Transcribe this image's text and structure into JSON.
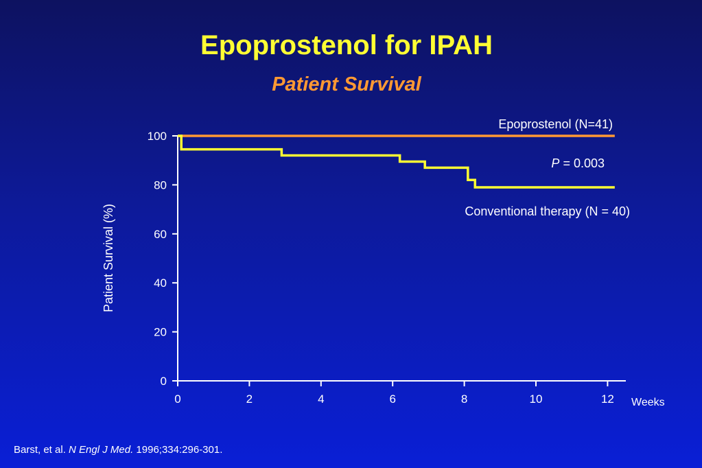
{
  "title": "Epoprostenol for IPAH",
  "subtitle": "Patient Survival",
  "citation": {
    "authors": "Barst, et al. ",
    "journal": "N Engl J Med.",
    "details": " 1996;334:296-301."
  },
  "colors": {
    "title": "#ffff33",
    "subtitle": "#ff9933",
    "epoprostenol": "#ff9933",
    "conventional": "#ffff33",
    "axis": "#ffffff"
  },
  "chart_data": {
    "type": "line",
    "title": "Patient Survival",
    "xlabel": "Weeks",
    "ylabel": "Patient Survival (%)",
    "xlim": [
      0,
      12.5
    ],
    "ylim": [
      0,
      100
    ],
    "xticks": [
      0,
      2,
      4,
      6,
      8,
      10,
      12
    ],
    "yticks": [
      0,
      20,
      40,
      60,
      80,
      100
    ],
    "grid": false,
    "step": true,
    "series": [
      {
        "name": "Epoprostenol (N=41)",
        "color": "#ff9933",
        "x": [
          0,
          12.2
        ],
        "y": [
          100,
          100
        ]
      },
      {
        "name": "Conventional therapy (N = 40)",
        "color": "#ffff33",
        "x": [
          0,
          0.1,
          2.9,
          6.2,
          6.9,
          8.1,
          8.3,
          12.2
        ],
        "y": [
          100,
          94.5,
          92,
          89.5,
          87,
          82,
          79,
          79
        ]
      }
    ],
    "annotations": [
      {
        "prefix": "P",
        "text": " = 0.003"
      }
    ]
  }
}
